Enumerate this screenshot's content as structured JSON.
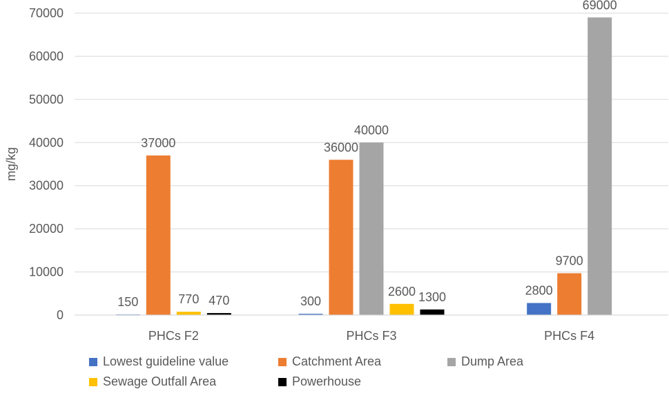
{
  "chart_data": {
    "type": "bar",
    "title": "",
    "xlabel": "",
    "ylabel": "mg/kg",
    "ylim": [
      0,
      70000
    ],
    "yticks": [
      0,
      10000,
      20000,
      30000,
      40000,
      50000,
      60000,
      70000
    ],
    "grid": true,
    "legend": "bottom",
    "categories": [
      "PHCs F2",
      "PHCs F3",
      "PHCs F4"
    ],
    "series": [
      {
        "name": "Lowest guideline value",
        "color": "#4472c4",
        "values": [
          150,
          300,
          2800
        ]
      },
      {
        "name": "Catchment Area",
        "color": "#ed7d31",
        "values": [
          37000,
          36000,
          9700
        ]
      },
      {
        "name": "Dump Area",
        "color": "#a5a5a5",
        "values": [
          null,
          40000,
          69000
        ]
      },
      {
        "name": "Sewage Outfall Area",
        "color": "#ffc000",
        "values": [
          770,
          2600,
          null
        ]
      },
      {
        "name": "Powerhouse",
        "color": "#000000",
        "values": [
          470,
          1300,
          null
        ]
      }
    ]
  }
}
